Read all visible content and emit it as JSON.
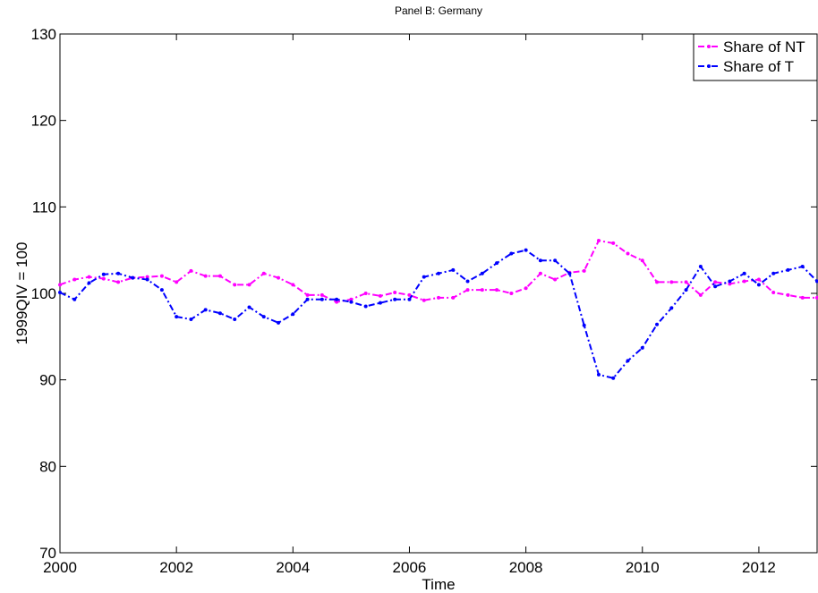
{
  "chart_data": {
    "type": "line",
    "title": "Panel B: Germany",
    "x_label": "Time",
    "y_label": "1999QIV = 100",
    "x": [
      2000,
      2000.25,
      2000.5,
      2000.75,
      2001,
      2001.25,
      2001.5,
      2001.75,
      2002,
      2002.25,
      2002.5,
      2002.75,
      2003,
      2003.25,
      2003.5,
      2003.75,
      2004,
      2004.25,
      2004.5,
      2004.75,
      2005,
      2005.25,
      2005.5,
      2005.75,
      2006,
      2006.25,
      2006.5,
      2006.75,
      2007,
      2007.25,
      2007.5,
      2007.75,
      2008,
      2008.25,
      2008.5,
      2008.75,
      2009,
      2009.25,
      2009.5,
      2009.75,
      2010,
      2010.25,
      2010.5,
      2010.75,
      2011,
      2011.25,
      2011.5,
      2011.75,
      2012,
      2012.25,
      2012.5,
      2012.75,
      2013
    ],
    "series": [
      {
        "name": "Share of NT",
        "color": "#ff00ff",
        "values": [
          101,
          101.6,
          101.9,
          101.7,
          101.3,
          101.8,
          101.9,
          102.0,
          101.3,
          102.6,
          102.0,
          102.0,
          101.0,
          101.0,
          102.3,
          101.8,
          101.0,
          99.8,
          99.8,
          99.0,
          99.3,
          100.0,
          99.7,
          100.1,
          99.8,
          99.2,
          99.5,
          99.5,
          100.4,
          100.4,
          100.4,
          100.0,
          100.6,
          102.3,
          101.6,
          102.4,
          102.6,
          106.1,
          105.8,
          104.6,
          103.8,
          101.3,
          101.3,
          101.3,
          99.8,
          101.3,
          101.1,
          101.4,
          101.6,
          100.1,
          99.8,
          99.5,
          99.5
        ]
      },
      {
        "name": "Share of T",
        "color": "#0000ff",
        "values": [
          100.1,
          99.3,
          101.2,
          102.2,
          102.3,
          101.8,
          101.6,
          100.4,
          97.3,
          97.0,
          98.1,
          97.7,
          97.0,
          98.4,
          97.3,
          96.6,
          97.6,
          99.3,
          99.3,
          99.3,
          99.0,
          98.5,
          98.9,
          99.3,
          99.3,
          101.9,
          102.3,
          102.7,
          101.4,
          102.3,
          103.5,
          104.6,
          105.0,
          103.8,
          103.8,
          102.3,
          96.3,
          90.6,
          90.2,
          92.2,
          93.7,
          96.4,
          98.3,
          100.4,
          103.1,
          100.8,
          101.4,
          102.3,
          101.0,
          102.3,
          102.7,
          103.1,
          101.4
        ]
      }
    ],
    "xlim": [
      2000,
      2013
    ],
    "xticks": [
      2000,
      2002,
      2004,
      2006,
      2008,
      2010,
      2012
    ],
    "ylim": [
      70,
      130
    ],
    "yticks": [
      70,
      80,
      90,
      100,
      110,
      120,
      130
    ],
    "grid": false,
    "legend": "top-right"
  }
}
